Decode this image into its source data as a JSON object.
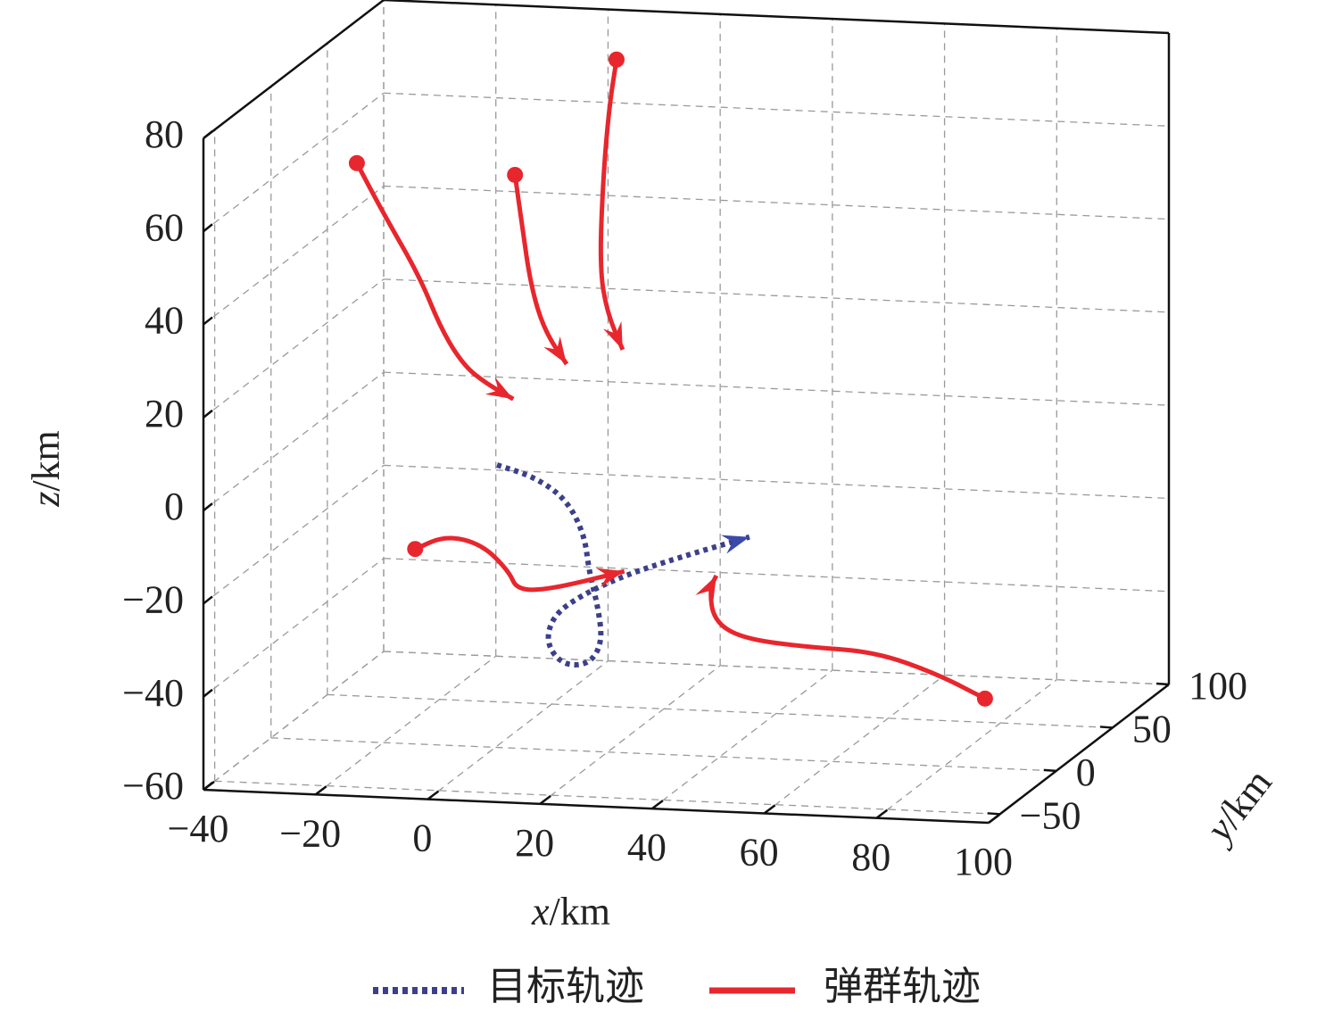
{
  "chart_data": {
    "type": "line3d",
    "x_label": "x/km",
    "y_label": "y/km",
    "z_label": "z/km",
    "xlim": [
      -40,
      100
    ],
    "ylim": [
      -60,
      100
    ],
    "zlim": [
      -60,
      80
    ],
    "xticks": [
      {
        "value": -40,
        "label": "−40"
      },
      {
        "value": -20,
        "label": "−20"
      },
      0,
      20,
      40,
      60,
      80,
      100
    ],
    "yticks": [
      {
        "value": -50,
        "label": "−50"
      },
      0,
      50,
      100
    ],
    "zticks": [
      {
        "value": -60,
        "label": "−60"
      },
      {
        "value": -40,
        "label": "−40"
      },
      {
        "value": -20,
        "label": "−20"
      },
      0,
      20,
      40,
      60,
      80
    ],
    "grid": true,
    "series": [
      {
        "name": "目标轨迹",
        "color": "#3c3f8a",
        "line_style": "dotted",
        "start_marker": false,
        "trajectories": [
          {
            "x": [
              0.3,
              7.1,
              12.7,
              15.9,
              16.7,
              18.3,
              19.1,
              16.7,
              11.9,
              9.0,
              10.3,
              15.1,
              23.0,
              32.6,
              45.3
            ],
            "y": [
              0,
              0,
              0,
              0,
              0,
              0,
              0,
              0,
              0,
              0,
              0,
              0,
              0,
              0,
              0
            ],
            "z": [
              0.7,
              -1.6,
              -6.1,
              -13.6,
              -21.3,
              -28.9,
              -36.5,
              -41.4,
              -41.7,
              -37.0,
              -31.2,
              -26.7,
              -21.9,
              -17.6,
              -12.5
            ]
          }
        ]
      },
      {
        "name": "弹群轨迹",
        "color": "#e8262d",
        "line_style": "solid",
        "start_marker": true,
        "trajectories": [
          {
            "x": [
              -24.7,
              -19.9,
              -13.5,
              -9.6,
              -5.6,
              -1.6,
              3.2
            ],
            "y": [
              0,
              0,
              0,
              0,
              0,
              0,
              0
            ],
            "z": [
              64.3,
              53.6,
              40.5,
              29.2,
              21.7,
              18.1,
              15.0
            ]
          },
          {
            "x": [
              3.5,
              4.7,
              6.3,
              8.7,
              12.7
            ],
            "y": [
              0,
              0,
              0,
              0,
              0
            ],
            "z": [
              63.2,
              52.9,
              39.6,
              30.1,
              23.0
            ]
          },
          {
            "x": [
              21.6,
              20.3,
              19.2,
              18.6,
              19.9,
              22.7
            ],
            "y": [
              0,
              0,
              0,
              0,
              0,
              0
            ],
            "z": [
              88.9,
              78.7,
              63.2,
              44.0,
              34.5,
              26.6
            ]
          },
          {
            "x": [
              -14.3,
              -8.8,
              -2.4,
              2.4,
              3.9,
              10.3,
              23.0
            ],
            "y": [
              0,
              0,
              0,
              0,
              0,
              0,
              0
            ],
            "z": [
              -18.1,
              -14.9,
              -16.5,
              -22.0,
              -26.1,
              -25.4,
              -21.0
            ]
          },
          {
            "x": [
              87.3,
              78.7,
              67.6,
              54.9,
              43.7,
              38.9,
              38.2,
              39.4
            ],
            "y": [
              0,
              0,
              0,
              0,
              0,
              0,
              0,
              0
            ],
            "z": [
              -45.1,
              -40.2,
              -36.0,
              -35.6,
              -34.3,
              -30.7,
              -24.0,
              -21.1
            ]
          }
        ]
      }
    ]
  }
}
